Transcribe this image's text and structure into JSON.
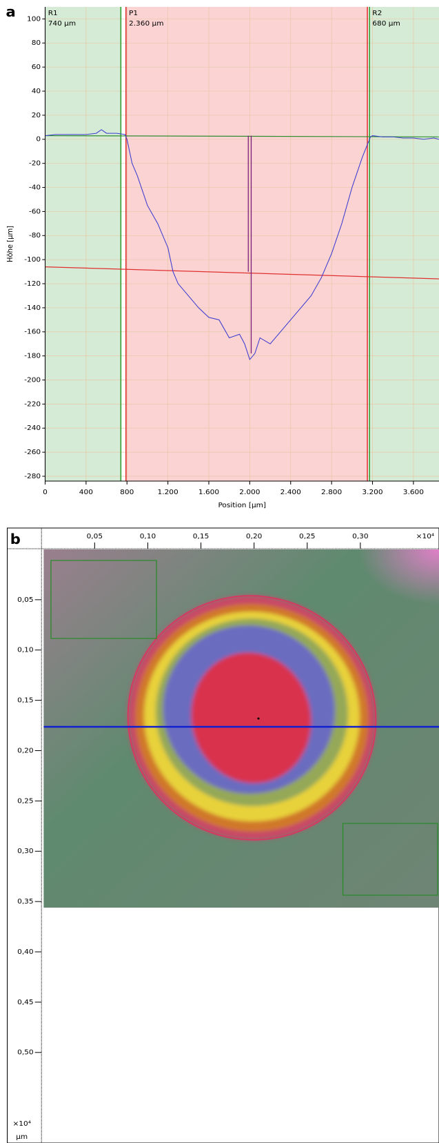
{
  "chart_data": [
    {
      "type": "line",
      "panel": "a",
      "y_label": "Höhe [µm]",
      "x_label": "Position [µm]",
      "xlim": [
        0,
        3850
      ],
      "ylim": [
        -284,
        110
      ],
      "xticks": [
        0,
        400,
        800,
        {
          "value": 1200,
          "label": "1.200"
        },
        {
          "value": 1600,
          "label": "1.600"
        },
        {
          "value": 2000,
          "label": "2.000"
        },
        {
          "value": 2400,
          "label": "2.400"
        },
        {
          "value": 2800,
          "label": "2.800"
        },
        {
          "value": 3200,
          "label": "3.200"
        },
        {
          "value": 3600,
          "label": "3.600"
        }
      ],
      "yticks": [
        -280,
        -260,
        -240,
        -220,
        -200,
        -180,
        -160,
        -140,
        -120,
        -100,
        -80,
        -60,
        -40,
        -20,
        0,
        20,
        40,
        60,
        80,
        100
      ],
      "grid": true,
      "color": "#3b3bd0",
      "x": [
        0,
        100,
        200,
        300,
        400,
        500,
        550,
        600,
        700,
        780,
        800,
        850,
        900,
        1000,
        1100,
        1200,
        1250,
        1300,
        1400,
        1500,
        1600,
        1700,
        1800,
        1900,
        1950,
        2000,
        2050,
        2100,
        2200,
        2300,
        2400,
        2500,
        2600,
        2700,
        2800,
        2900,
        3000,
        3100,
        3180,
        3200,
        3300,
        3400,
        3500,
        3600,
        3700,
        3800,
        3850
      ],
      "values": [
        3,
        4,
        4,
        4,
        4,
        5,
        8,
        5,
        5,
        4,
        0,
        -20,
        -30,
        -55,
        -70,
        -90,
        -110,
        -120,
        -130,
        -140,
        -148,
        -150,
        -165,
        -162,
        -170,
        -183,
        -178,
        -165,
        -170,
        -160,
        -150,
        -140,
        -130,
        -115,
        -95,
        -70,
        -40,
        -15,
        2,
        3,
        2,
        2,
        1,
        1,
        0,
        1,
        0
      ],
      "regions": [
        {
          "name": "R1",
          "label": "740 µm",
          "start": 0,
          "end": 740,
          "color": "#2e9b2e",
          "fill": "#d5ebd5"
        },
        {
          "name": "P1",
          "label": "2.360 µm",
          "start": 790,
          "end": 3150,
          "color": "#e03030",
          "fill": "#fbd3d3"
        },
        {
          "name": "R2",
          "label": "680 µm",
          "start": 3170,
          "end": 3850,
          "color": "#2e9b2e",
          "fill": "#d5ebd5"
        }
      ],
      "ref_lines": [
        {
          "color": "#2e8b2e",
          "x": [
            0,
            3850
          ],
          "y": [
            3,
            2
          ]
        },
        {
          "color": "#e03030",
          "x": [
            0,
            3850
          ],
          "y": [
            -106,
            -116
          ]
        }
      ],
      "measure": {
        "x": 2000,
        "y": [
          3,
          -110,
          -178
        ],
        "color": "#7a1a7a"
      }
    },
    {
      "type": "image",
      "panel": "b",
      "x_unit": "×10⁴",
      "y_unit": "×10⁴",
      "y_unit_label": "µm",
      "xlim": [
        0,
        0.374
      ],
      "ylim": [
        0,
        0.59
      ],
      "xticks": [
        {
          "value": 0.05,
          "label": "0,05"
        },
        {
          "value": 0.1,
          "label": "0,10"
        },
        {
          "value": 0.15,
          "label": "0,15"
        },
        {
          "value": 0.2,
          "label": "0,20"
        },
        {
          "value": 0.25,
          "label": "0,25"
        },
        {
          "value": 0.3,
          "label": "0,30"
        }
      ],
      "yticks": [
        {
          "value": 0.05,
          "label": "0,05"
        },
        {
          "value": 0.1,
          "label": "0,10"
        },
        {
          "value": 0.15,
          "label": "0,15"
        },
        {
          "value": 0.2,
          "label": "0,20"
        },
        {
          "value": 0.25,
          "label": "0,25"
        },
        {
          "value": 0.3,
          "label": "0,30"
        },
        {
          "value": 0.35,
          "label": "0,35"
        },
        {
          "value": 0.4,
          "label": "0,40"
        },
        {
          "value": 0.45,
          "label": "0,45"
        },
        {
          "value": 0.5,
          "label": "0,50"
        }
      ]
    }
  ]
}
